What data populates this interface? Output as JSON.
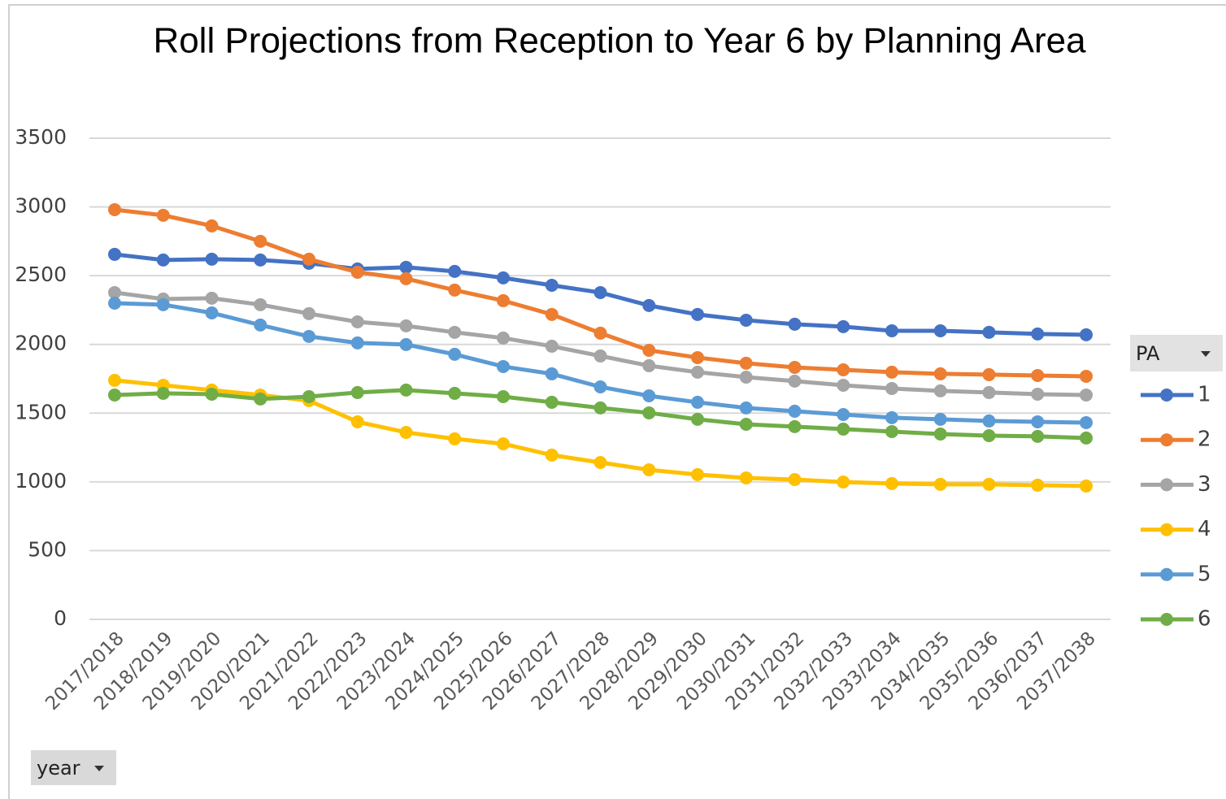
{
  "chart_data": {
    "type": "line",
    "title": "Roll Projections from Reception to Year 6 by Planning Area",
    "legend_title": "PA",
    "axis_field_button": "year",
    "categories": [
      "2017/2018",
      "2018/2019",
      "2019/2020",
      "2020/2021",
      "2021/2022",
      "2022/2023",
      "2023/2024",
      "2024/2025",
      "2025/2026",
      "2026/2027",
      "2027/2028",
      "2028/2029",
      "2029/2030",
      "2030/2031",
      "2031/2032",
      "2032/2033",
      "2033/2034",
      "2034/2035",
      "2035/2036",
      "2036/2037",
      "2037/2038"
    ],
    "series": [
      {
        "name": "1",
        "color": "#4472c4",
        "values": [
          2655,
          2614,
          2620,
          2614,
          2590,
          2549,
          2561,
          2531,
          2484,
          2430,
          2377,
          2283,
          2218,
          2176,
          2147,
          2129,
          2099,
          2099,
          2088,
          2076,
          2070
        ]
      },
      {
        "name": "2",
        "color": "#ed7d31",
        "values": [
          2980,
          2939,
          2862,
          2750,
          2620,
          2525,
          2478,
          2395,
          2318,
          2218,
          2082,
          1957,
          1904,
          1863,
          1833,
          1815,
          1798,
          1786,
          1780,
          1774,
          1768
        ]
      },
      {
        "name": "3",
        "color": "#a5a5a5",
        "values": [
          2377,
          2330,
          2336,
          2289,
          2224,
          2164,
          2135,
          2088,
          2046,
          1987,
          1916,
          1845,
          1798,
          1762,
          1733,
          1703,
          1679,
          1662,
          1650,
          1638,
          1632
        ]
      },
      {
        "name": "4",
        "color": "#ffc000",
        "values": [
          1739,
          1703,
          1668,
          1632,
          1591,
          1437,
          1360,
          1313,
          1277,
          1195,
          1141,
          1088,
          1053,
          1029,
          1017,
          999,
          988,
          982,
          982,
          976,
          970
        ]
      },
      {
        "name": "5",
        "color": "#5b9bd5",
        "values": [
          2300,
          2289,
          2229,
          2141,
          2058,
          2011,
          1999,
          1928,
          1839,
          1786,
          1691,
          1626,
          1579,
          1538,
          1514,
          1490,
          1467,
          1455,
          1443,
          1437,
          1431
        ]
      },
      {
        "name": "6",
        "color": "#70ad47",
        "values": [
          1632,
          1644,
          1638,
          1603,
          1620,
          1650,
          1668,
          1644,
          1620,
          1579,
          1538,
          1502,
          1455,
          1419,
          1402,
          1384,
          1366,
          1348,
          1336,
          1331,
          1319
        ]
      }
    ],
    "ylim": [
      0,
      3500
    ],
    "yticks": [
      0,
      500,
      1000,
      1500,
      2000,
      2500,
      3000,
      3500
    ],
    "grid": true
  }
}
